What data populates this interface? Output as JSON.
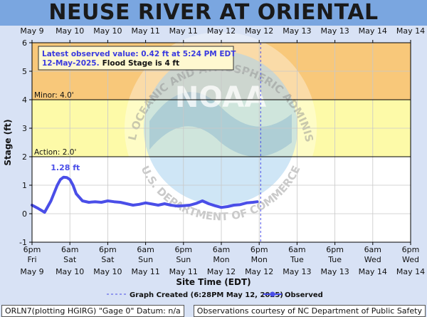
{
  "page": {
    "title": "NEUSE RIVER AT ORIENTAL"
  },
  "watermark": {
    "logo_text": "NOAA",
    "upper_text": "NATIONAL OCEANIC AND ATMOSPHERIC ADMINISTRATION",
    "lower_text": "U.S. DEPARTMENT OF COMMERCE"
  },
  "info_box": {
    "line1": "Latest observed value: 0.42 ft at 5:24 PM EDT",
    "line2_date": "12-May-2025.",
    "line2_flood": "Flood Stage is 4 ft"
  },
  "legend": {
    "created_label": "Graph Created (6:28PM May 12, 2025)",
    "observed_label": "Observed"
  },
  "footer": {
    "left": "ORLN7(plotting HGIRG) \"Gage 0\" Datum: n/a",
    "right": "Observations courtesy of NC Department of Public Safety"
  },
  "colors": {
    "moderate_band": "#f8c87a",
    "minor_band": "#fdfaa8",
    "observed_line": "#4a4ee8",
    "created_line": "#4a4ee8"
  },
  "chart_data": {
    "type": "line",
    "xlabel": "Site Time (EDT)",
    "ylabel": "Stage (ft)",
    "ylim": [
      -1,
      6
    ],
    "yticks": [
      -1,
      0,
      1,
      2,
      3,
      4,
      5,
      6
    ],
    "x_start": "2025-05-09T18:00",
    "x_end": "2025-05-14T18:00",
    "grid": true,
    "top_axis_labels": [
      "May 9",
      "May 10",
      "May 10",
      "May 11",
      "May 11",
      "May 12",
      "May 12",
      "May 13",
      "May 13",
      "May 14",
      "May 14"
    ],
    "bottom_axis": {
      "times": [
        "6pm",
        "6am",
        "6pm",
        "6am",
        "6pm",
        "6am",
        "6pm",
        "6am",
        "6pm",
        "6am",
        "6pm"
      ],
      "days": [
        "Fri",
        "Sat",
        "Sat",
        "Sun",
        "Sun",
        "Mon",
        "Mon",
        "Tue",
        "Tue",
        "Wed",
        "Wed"
      ],
      "dates": [
        "May 9",
        "May 10",
        "May 10",
        "May 11",
        "May 11",
        "May 12",
        "May 12",
        "May 13",
        "May 13",
        "May 14",
        "May 14"
      ]
    },
    "thresholds": [
      {
        "name": "Minor",
        "label": "Minor: 4.0'",
        "value": 4.0
      },
      {
        "name": "Action",
        "label": "Action: 2.0'",
        "value": 2.0
      }
    ],
    "bands": [
      {
        "from": 4.0,
        "to": 6.0,
        "color": "#f8c87a"
      },
      {
        "from": 2.0,
        "to": 4.0,
        "color": "#fdfaa8"
      }
    ],
    "graph_created": "2025-05-12T18:28",
    "peak_annotation": {
      "label": "1.28 ft",
      "x": "2025-05-10T05:00",
      "y": 1.28
    },
    "series": [
      {
        "name": "Observed",
        "x": [
          "2025-05-09T18:00",
          "2025-05-09T20:00",
          "2025-05-09T22:00",
          "2025-05-10T00:00",
          "2025-05-10T02:00",
          "2025-05-10T03:00",
          "2025-05-10T04:00",
          "2025-05-10T05:00",
          "2025-05-10T06:00",
          "2025-05-10T07:00",
          "2025-05-10T08:00",
          "2025-05-10T10:00",
          "2025-05-10T12:00",
          "2025-05-10T14:00",
          "2025-05-10T16:00",
          "2025-05-10T18:00",
          "2025-05-10T20:00",
          "2025-05-10T22:00",
          "2025-05-11T00:00",
          "2025-05-11T02:00",
          "2025-05-11T04:00",
          "2025-05-11T06:00",
          "2025-05-11T08:00",
          "2025-05-11T10:00",
          "2025-05-11T12:00",
          "2025-05-11T14:00",
          "2025-05-11T16:00",
          "2025-05-11T18:00",
          "2025-05-11T20:00",
          "2025-05-11T22:00",
          "2025-05-12T00:00",
          "2025-05-12T02:00",
          "2025-05-12T04:00",
          "2025-05-12T06:00",
          "2025-05-12T08:00",
          "2025-05-12T10:00",
          "2025-05-12T12:00",
          "2025-05-12T14:00",
          "2025-05-12T16:00",
          "2025-05-12T17:24"
        ],
        "y": [
          0.3,
          0.18,
          0.05,
          0.45,
          1.0,
          1.2,
          1.28,
          1.27,
          1.2,
          1.0,
          0.7,
          0.45,
          0.4,
          0.42,
          0.4,
          0.45,
          0.42,
          0.4,
          0.35,
          0.3,
          0.33,
          0.38,
          0.34,
          0.3,
          0.35,
          0.3,
          0.27,
          0.28,
          0.3,
          0.36,
          0.45,
          0.35,
          0.28,
          0.22,
          0.25,
          0.3,
          0.32,
          0.38,
          0.4,
          0.42
        ]
      }
    ]
  }
}
